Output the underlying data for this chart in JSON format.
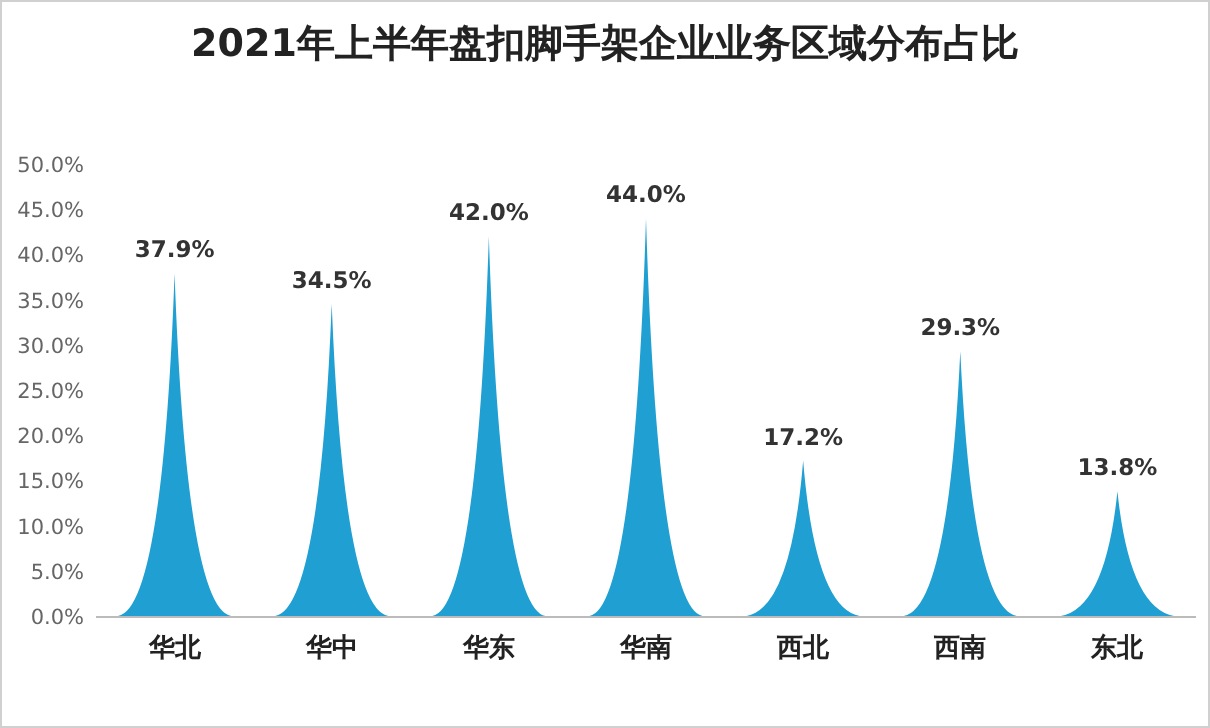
{
  "chart_data": {
    "type": "bar",
    "title": "2021年上半年盘扣脚手架企业业务区域分布占比",
    "categories": [
      "华北",
      "华中",
      "华东",
      "华南",
      "西北",
      "西南",
      "东北"
    ],
    "values": [
      37.9,
      34.5,
      42.0,
      44.0,
      17.2,
      29.3,
      13.8
    ],
    "value_labels": [
      "37.9%",
      "34.5%",
      "42.0%",
      "44.0%",
      "17.2%",
      "29.3%",
      "13.8%"
    ],
    "color": "#1f9fd2",
    "ylim": [
      0,
      50
    ],
    "yticks": [
      {
        "value": 0,
        "label": "0.0%"
      },
      {
        "value": 5,
        "label": "5.0%"
      },
      {
        "value": 10,
        "label": "10.0%"
      },
      {
        "value": 15,
        "label": "15.0%"
      },
      {
        "value": 20,
        "label": "20.0%"
      },
      {
        "value": 25,
        "label": "25.0%"
      },
      {
        "value": 30,
        "label": "30.0%"
      },
      {
        "value": 35,
        "label": "35.0%"
      },
      {
        "value": 40,
        "label": "40.0%"
      },
      {
        "value": 45,
        "label": "45.0%"
      },
      {
        "value": 50,
        "label": "50.0%"
      }
    ],
    "grid": false
  }
}
